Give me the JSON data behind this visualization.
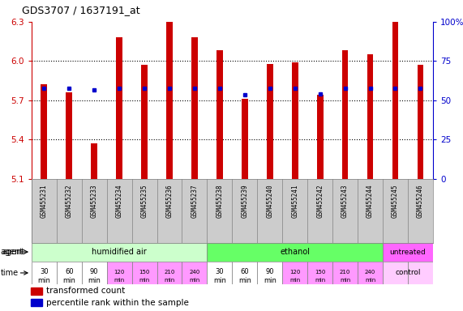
{
  "title": "GDS3707 / 1637191_at",
  "samples": [
    "GSM455231",
    "GSM455232",
    "GSM455233",
    "GSM455234",
    "GSM455235",
    "GSM455236",
    "GSM455237",
    "GSM455238",
    "GSM455239",
    "GSM455240",
    "GSM455241",
    "GSM455242",
    "GSM455243",
    "GSM455244",
    "GSM455245",
    "GSM455246"
  ],
  "bar_values": [
    5.82,
    5.76,
    5.37,
    6.18,
    5.97,
    6.3,
    6.18,
    6.08,
    5.71,
    5.98,
    5.99,
    5.74,
    6.08,
    6.05,
    6.3,
    5.97
  ],
  "percentile_values": [
    5.79,
    5.79,
    5.78,
    5.79,
    5.79,
    5.79,
    5.79,
    5.79,
    5.74,
    5.79,
    5.79,
    5.75,
    5.79,
    5.79,
    5.79,
    5.79
  ],
  "bar_color": "#cc0000",
  "percentile_color": "#0000cc",
  "y_min": 5.1,
  "y_max": 6.3,
  "y_ticks_left": [
    5.1,
    5.4,
    5.7,
    6.0,
    6.3
  ],
  "y_ticks_right": [
    0,
    25,
    50,
    75,
    100
  ],
  "agent_groups": [
    {
      "label": "humidified air",
      "start": 0,
      "end": 7,
      "color": "#ccffcc"
    },
    {
      "label": "ethanol",
      "start": 7,
      "end": 14,
      "color": "#66ff66"
    },
    {
      "label": "untreated",
      "start": 14,
      "end": 16,
      "color": "#ff66ff"
    }
  ],
  "time_labels": [
    "30\nmin",
    "60\nmin",
    "90\nmin",
    "120\nmin",
    "150\nmin",
    "210\nmin",
    "240\nmin",
    "30\nmin",
    "60\nmin",
    "90\nmin",
    "120\nmin",
    "150\nmin",
    "210\nmin",
    "240\nmin",
    "",
    ""
  ],
  "time_colors_first3": "#ff99ff",
  "time_colors_last4": "#ff44ff",
  "time_white": "#ffffff",
  "control_bg": "#ffccff",
  "control_label": "control",
  "agent_label": "agent",
  "time_label": "time",
  "legend_bar": "transformed count",
  "legend_pct": "percentile rank within the sample",
  "sample_bg": "#cccccc"
}
